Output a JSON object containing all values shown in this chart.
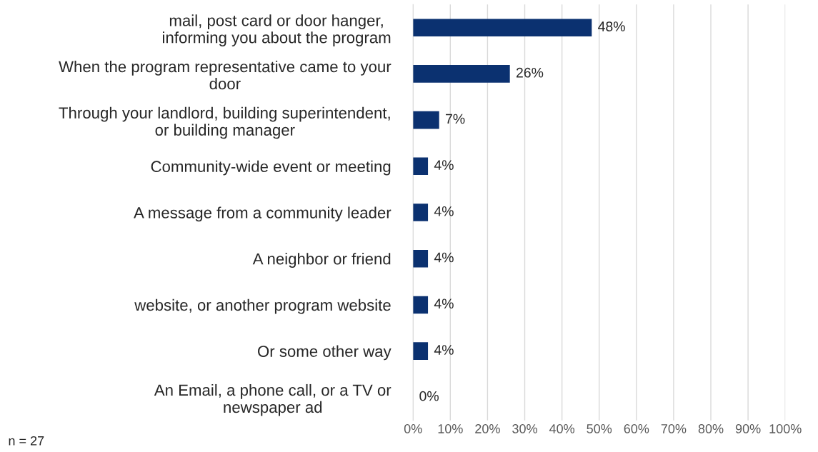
{
  "chart_data": {
    "type": "bar",
    "orientation": "horizontal",
    "categories": [
      "mail, post card or door hanger,\ninforming you about the program",
      "When the program representative came to your\ndoor",
      "Through your landlord, building superintendent,\nor building manager",
      "Community-wide event or meeting",
      "A message from a community leader",
      "A neighbor or friend",
      "website, or another program website",
      "Or some other way",
      "An Email, a phone call, or a TV or\nnewspaper ad"
    ],
    "values": [
      48,
      26,
      7,
      4,
      4,
      4,
      4,
      4,
      0
    ],
    "color": "#0b3170",
    "value_labels": [
      "48%",
      "26%",
      "7%",
      "4%",
      "4%",
      "4%",
      "4%",
      "4%",
      "0%"
    ],
    "xlim": [
      0,
      100
    ],
    "xticks": [
      {
        "value": 0,
        "label": "0%"
      },
      {
        "value": 10,
        "label": "10%"
      },
      {
        "value": 20,
        "label": "20%"
      },
      {
        "value": 30,
        "label": "30%"
      },
      {
        "value": 40,
        "label": "40%"
      },
      {
        "value": 50,
        "label": "50%"
      },
      {
        "value": 60,
        "label": "60%"
      },
      {
        "value": 70,
        "label": "70%"
      },
      {
        "value": 80,
        "label": "80%"
      },
      {
        "value": 90,
        "label": "90%"
      },
      {
        "value": 100,
        "label": "100%"
      }
    ],
    "grid": "x",
    "legend": false,
    "annotations": [
      "n = 27"
    ]
  }
}
